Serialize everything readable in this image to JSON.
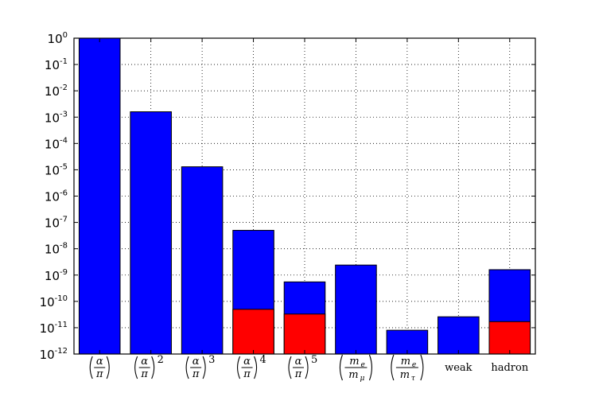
{
  "chart_data": {
    "type": "bar",
    "yscale": "log",
    "ylim": [
      1e-12,
      1
    ],
    "grid": true,
    "categories": [
      {
        "id": "alpha_pi",
        "label": "(α/π)"
      },
      {
        "id": "alpha_pi_2",
        "label": "(α/π)²"
      },
      {
        "id": "alpha_pi_3",
        "label": "(α/π)³"
      },
      {
        "id": "alpha_pi_4",
        "label": "(α/π)⁴"
      },
      {
        "id": "alpha_pi_5",
        "label": "(α/π)⁵"
      },
      {
        "id": "me_mmu",
        "label": "(mₑ/m_μ)"
      },
      {
        "id": "me_mtau",
        "label": "(mₑ/m_τ)"
      },
      {
        "id": "weak",
        "label": "weak"
      },
      {
        "id": "hadron",
        "label": "hadron"
      }
    ],
    "series": [
      {
        "color": "#0000ff",
        "values": [
          1.0,
          0.0016,
          1.3e-05,
          5e-08,
          5.5e-10,
          2.4e-09,
          8e-12,
          2.6e-11,
          1.6e-09
        ]
      },
      {
        "color": "#ff0000",
        "values": [
          null,
          null,
          null,
          5e-11,
          3.3e-11,
          null,
          null,
          null,
          1.7e-11
        ]
      }
    ],
    "yticks": [
      {
        "base": "10",
        "exp": "0"
      },
      {
        "base": "10",
        "exp": "-1"
      },
      {
        "base": "10",
        "exp": "-2"
      },
      {
        "base": "10",
        "exp": "-3"
      },
      {
        "base": "10",
        "exp": "-4"
      },
      {
        "base": "10",
        "exp": "-5"
      },
      {
        "base": "10",
        "exp": "-6"
      },
      {
        "base": "10",
        "exp": "-7"
      },
      {
        "base": "10",
        "exp": "-8"
      },
      {
        "base": "10",
        "exp": "-9"
      },
      {
        "base": "10",
        "exp": "-10"
      },
      {
        "base": "10",
        "exp": "-11"
      },
      {
        "base": "10",
        "exp": "-12"
      }
    ]
  }
}
